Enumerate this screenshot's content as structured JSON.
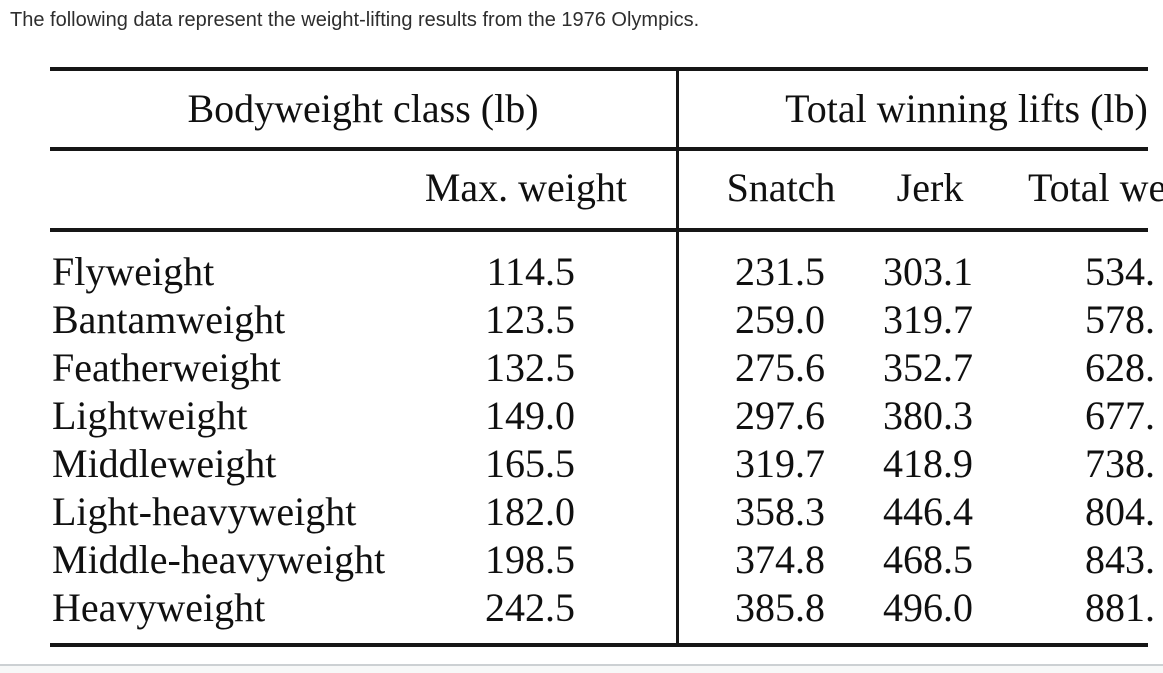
{
  "page": {
    "intro": "The following data represent the weight-lifting results from the 1976 Olympics."
  },
  "table": {
    "group_headers": {
      "bodyweight": "Bodyweight class (lb)",
      "total_lifts": "Total winning lifts (lb)"
    },
    "sub_headers": {
      "max_weight": "Max. weight",
      "snatch": "Snatch",
      "jerk": "Jerk",
      "total_weight": "Total we"
    },
    "rows": [
      {
        "class": "Flyweight",
        "max_weight": "114.5",
        "snatch": "231.5",
        "jerk": "303.1",
        "total": "534."
      },
      {
        "class": "Bantamweight",
        "max_weight": "123.5",
        "snatch": "259.0",
        "jerk": "319.7",
        "total": "578."
      },
      {
        "class": "Featherweight",
        "max_weight": "132.5",
        "snatch": "275.6",
        "jerk": "352.7",
        "total": "628."
      },
      {
        "class": "Lightweight",
        "max_weight": "149.0",
        "snatch": "297.6",
        "jerk": "380.3",
        "total": "677."
      },
      {
        "class": "Middleweight",
        "max_weight": "165.5",
        "snatch": "319.7",
        "jerk": "418.9",
        "total": "738."
      },
      {
        "class": "Light-heavyweight",
        "max_weight": "182.0",
        "snatch": "358.3",
        "jerk": "446.4",
        "total": "804."
      },
      {
        "class": "Middle-heavyweight",
        "max_weight": "198.5",
        "snatch": "374.8",
        "jerk": "468.5",
        "total": "843."
      },
      {
        "class": "Heavyweight",
        "max_weight": "242.5",
        "snatch": "385.8",
        "jerk": "496.0",
        "total": "881."
      }
    ]
  },
  "colors": {
    "rule": "#161616",
    "text": "#101010",
    "intro_text": "#2e2e2e",
    "bottom_divider": "#ccd0d3",
    "background": "#ffffff"
  }
}
